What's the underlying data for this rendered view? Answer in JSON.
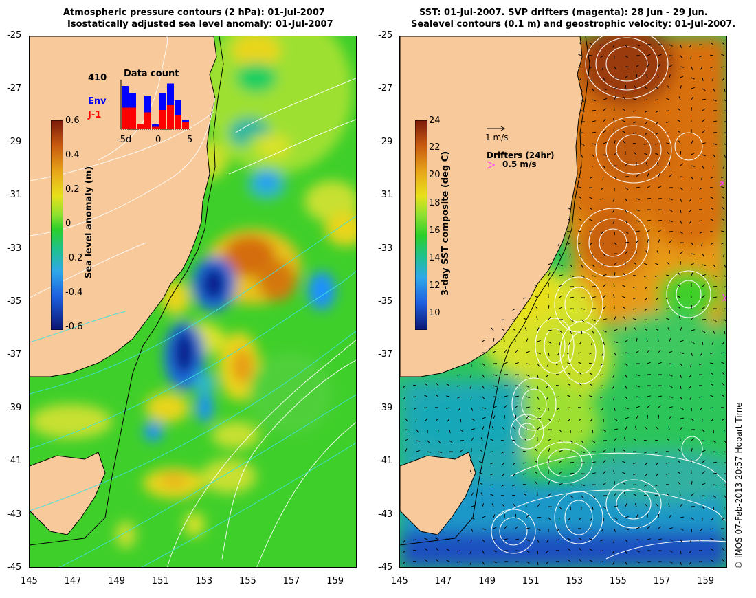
{
  "left_panel": {
    "title_line1": "Atmospheric pressure contours (2 hPa): 01-Jul-2007",
    "title_line2": "Isostatically adjusted sea level anomaly: 01-Jul-2007",
    "colorbar": {
      "label": "Sea level anomaly (m)",
      "ticks": [
        "0.6",
        "0.4",
        "0.2",
        "0",
        "-0.2",
        "-0.4",
        "-0.6"
      ],
      "range": [
        -0.6,
        0.6
      ]
    },
    "inset": {
      "title": "Data count",
      "count": "410",
      "legend": [
        {
          "label": "Env",
          "color": "#0000ff"
        },
        {
          "label": "J-1",
          "color": "#ff0000"
        }
      ],
      "x_ticks": [
        "-5d",
        "0",
        "5"
      ],
      "env_bars": [
        0.9,
        0.75,
        0.1,
        0.7,
        0.1,
        0.75,
        0.95,
        0.6,
        0.2
      ],
      "j1_bars": [
        0.45,
        0.45,
        0.1,
        0.35,
        0.05,
        0.4,
        0.5,
        0.3,
        0.15
      ]
    }
  },
  "right_panel": {
    "title_line1": "SST: 01-Jul-2007. SVP drifters (magenta): 28 Jun - 29 Jun.",
    "title_line2": "Sealevel contours (0.1 m) and geostrophic velocity: 01-Jul-2007.",
    "colorbar": {
      "label": "3-day SST composite (deg C)",
      "ticks": [
        "24",
        "22",
        "20",
        "18",
        "16",
        "14",
        "12",
        "10"
      ],
      "range": [
        9,
        24
      ]
    },
    "velocity_scale": "1 m/s",
    "drifters_label": "Drifters (24hr)",
    "drifters_scale": "0.5 m/s"
  },
  "axes": {
    "lat_ticks": [
      "-25",
      "-27",
      "-29",
      "-31",
      "-33",
      "-35",
      "-37",
      "-39",
      "-41",
      "-43",
      "-45"
    ],
    "lon_ticks": [
      "145",
      "147",
      "149",
      "151",
      "153",
      "155",
      "157",
      "159"
    ]
  },
  "credit": "© IMOS 07-Feb-2013 20:57 Hobart Time",
  "colors": {
    "land": "#f8c99a",
    "background": "#ffffff"
  }
}
